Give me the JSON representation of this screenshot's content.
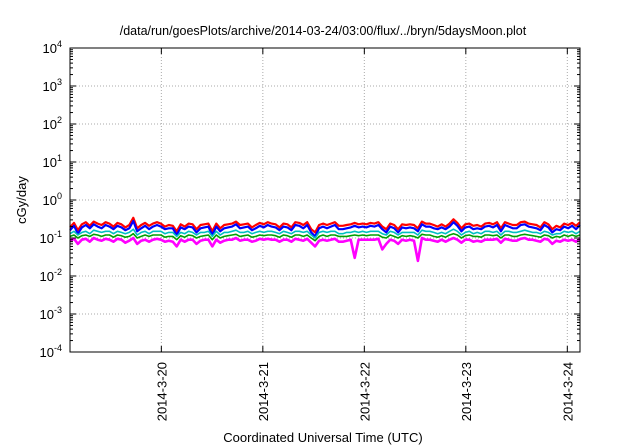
{
  "chart_data": {
    "type": "line",
    "title": "/data/run/goesPlots/archive/2014-03-24/03:00/flux/../bryn/5daysMoon.plot",
    "xlabel": "Coordinated Universal Time (UTC)",
    "ylabel": "cGy/day",
    "y_scale": "log",
    "ylim": [
      0.0001,
      10000
    ],
    "xlim": [
      "2014-03-19T02:24",
      "2014-03-24T03:00"
    ],
    "x_ticks": [
      "2014-3-20",
      "2014-3-21",
      "2014-3-22",
      "2014-3-23",
      "2014-3-24"
    ],
    "y_ticks": [
      {
        "base": "10",
        "exp": "-4"
      },
      {
        "base": "10",
        "exp": "-3"
      },
      {
        "base": "10",
        "exp": "-2"
      },
      {
        "base": "10",
        "exp": "-1"
      },
      {
        "base": "10",
        "exp": "0"
      },
      {
        "base": "10",
        "exp": "1"
      },
      {
        "base": "10",
        "exp": "2"
      },
      {
        "base": "10",
        "exp": "3"
      },
      {
        "base": "10",
        "exp": "4"
      }
    ],
    "grid": true,
    "legend": "none",
    "series": [
      {
        "color": "#ff0000",
        "values": [
          0.19,
          0.25,
          0.16,
          0.23,
          0.26,
          0.21,
          0.27,
          0.24,
          0.22,
          0.26,
          0.24,
          0.2,
          0.25,
          0.23,
          0.19,
          0.22,
          0.34,
          0.18,
          0.22,
          0.25,
          0.21,
          0.24,
          0.26,
          0.24,
          0.2,
          0.22,
          0.21,
          0.15,
          0.23,
          0.2,
          0.24,
          0.23,
          0.17,
          0.22,
          0.23,
          0.24,
          0.15,
          0.24,
          0.18,
          0.22,
          0.23,
          0.24,
          0.27,
          0.22,
          0.23,
          0.24,
          0.19,
          0.22,
          0.25,
          0.23,
          0.26,
          0.24,
          0.23,
          0.19,
          0.24,
          0.23,
          0.19,
          0.26,
          0.25,
          0.22,
          0.26,
          0.17,
          0.14,
          0.22,
          0.24,
          0.22,
          0.24,
          0.26,
          0.21,
          0.21,
          0.22,
          0.23,
          0.25,
          0.23,
          0.24,
          0.23,
          0.25,
          0.24,
          0.26,
          0.2,
          0.17,
          0.24,
          0.22,
          0.17,
          0.23,
          0.22,
          0.23,
          0.22,
          0.18,
          0.27,
          0.24,
          0.24,
          0.22,
          0.2,
          0.23,
          0.2,
          0.24,
          0.31,
          0.25,
          0.18,
          0.23,
          0.24,
          0.21,
          0.22,
          0.2,
          0.24,
          0.25,
          0.23,
          0.26,
          0.18,
          0.26,
          0.24,
          0.22,
          0.22,
          0.26,
          0.27,
          0.24,
          0.23,
          0.22,
          0.19,
          0.26,
          0.23,
          0.17,
          0.21,
          0.19,
          0.24,
          0.22,
          0.25,
          0.21,
          0.26
        ]
      },
      {
        "color": "#0000ff",
        "values": [
          0.16,
          0.21,
          0.13,
          0.19,
          0.22,
          0.18,
          0.23,
          0.2,
          0.18,
          0.22,
          0.2,
          0.17,
          0.21,
          0.19,
          0.16,
          0.18,
          0.28,
          0.15,
          0.18,
          0.21,
          0.17,
          0.2,
          0.22,
          0.2,
          0.17,
          0.18,
          0.18,
          0.12,
          0.19,
          0.17,
          0.2,
          0.19,
          0.14,
          0.18,
          0.19,
          0.2,
          0.12,
          0.2,
          0.15,
          0.18,
          0.19,
          0.2,
          0.23,
          0.18,
          0.19,
          0.2,
          0.16,
          0.18,
          0.21,
          0.19,
          0.22,
          0.2,
          0.19,
          0.16,
          0.2,
          0.19,
          0.16,
          0.22,
          0.21,
          0.18,
          0.22,
          0.14,
          0.11,
          0.18,
          0.2,
          0.18,
          0.2,
          0.22,
          0.17,
          0.17,
          0.18,
          0.19,
          0.21,
          0.19,
          0.2,
          0.19,
          0.21,
          0.2,
          0.22,
          0.17,
          0.14,
          0.2,
          0.18,
          0.14,
          0.19,
          0.18,
          0.19,
          0.18,
          0.15,
          0.23,
          0.2,
          0.2,
          0.18,
          0.17,
          0.19,
          0.17,
          0.2,
          0.26,
          0.21,
          0.15,
          0.19,
          0.2,
          0.17,
          0.18,
          0.17,
          0.2,
          0.21,
          0.19,
          0.22,
          0.15,
          0.22,
          0.2,
          0.18,
          0.18,
          0.22,
          0.23,
          0.2,
          0.19,
          0.18,
          0.16,
          0.22,
          0.19,
          0.14,
          0.17,
          0.16,
          0.2,
          0.18,
          0.21,
          0.17,
          0.22
        ]
      },
      {
        "color": "#00c0c0",
        "values": [
          0.13,
          0.15,
          0.12,
          0.14,
          0.15,
          0.13,
          0.16,
          0.15,
          0.14,
          0.15,
          0.15,
          0.13,
          0.15,
          0.14,
          0.13,
          0.14,
          0.17,
          0.12,
          0.14,
          0.15,
          0.13,
          0.15,
          0.15,
          0.15,
          0.13,
          0.14,
          0.14,
          0.11,
          0.14,
          0.13,
          0.15,
          0.14,
          0.12,
          0.14,
          0.14,
          0.15,
          0.11,
          0.15,
          0.12,
          0.14,
          0.14,
          0.15,
          0.16,
          0.14,
          0.14,
          0.15,
          0.13,
          0.14,
          0.15,
          0.14,
          0.15,
          0.15,
          0.14,
          0.13,
          0.15,
          0.14,
          0.13,
          0.15,
          0.15,
          0.14,
          0.15,
          0.12,
          0.1,
          0.14,
          0.15,
          0.14,
          0.15,
          0.15,
          0.13,
          0.13,
          0.14,
          0.14,
          0.15,
          0.14,
          0.15,
          0.14,
          0.15,
          0.15,
          0.15,
          0.13,
          0.12,
          0.15,
          0.14,
          0.12,
          0.14,
          0.14,
          0.14,
          0.14,
          0.12,
          0.16,
          0.15,
          0.15,
          0.14,
          0.13,
          0.14,
          0.13,
          0.15,
          0.17,
          0.15,
          0.12,
          0.14,
          0.15,
          0.13,
          0.14,
          0.13,
          0.15,
          0.15,
          0.14,
          0.15,
          0.12,
          0.15,
          0.15,
          0.14,
          0.14,
          0.15,
          0.16,
          0.15,
          0.14,
          0.14,
          0.13,
          0.15,
          0.14,
          0.12,
          0.13,
          0.13,
          0.15,
          0.14,
          0.15,
          0.13,
          0.15
        ]
      },
      {
        "color": "#00a000",
        "values": [
          0.11,
          0.12,
          0.1,
          0.115,
          0.12,
          0.11,
          0.125,
          0.12,
          0.11,
          0.12,
          0.12,
          0.105,
          0.12,
          0.115,
          0.105,
          0.11,
          0.13,
          0.1,
          0.11,
          0.12,
          0.11,
          0.12,
          0.12,
          0.12,
          0.105,
          0.11,
          0.11,
          0.09,
          0.115,
          0.105,
          0.12,
          0.115,
          0.1,
          0.11,
          0.115,
          0.12,
          0.09,
          0.12,
          0.1,
          0.11,
          0.115,
          0.12,
          0.125,
          0.11,
          0.115,
          0.12,
          0.105,
          0.11,
          0.12,
          0.115,
          0.12,
          0.12,
          0.115,
          0.105,
          0.12,
          0.115,
          0.105,
          0.12,
          0.12,
          0.11,
          0.12,
          0.1,
          0.085,
          0.11,
          0.12,
          0.11,
          0.12,
          0.12,
          0.11,
          0.11,
          0.11,
          0.115,
          0.12,
          0.115,
          0.12,
          0.115,
          0.12,
          0.12,
          0.12,
          0.105,
          0.1,
          0.12,
          0.11,
          0.1,
          0.115,
          0.11,
          0.115,
          0.11,
          0.1,
          0.125,
          0.12,
          0.12,
          0.11,
          0.105,
          0.115,
          0.105,
          0.12,
          0.13,
          0.12,
          0.1,
          0.115,
          0.12,
          0.11,
          0.11,
          0.105,
          0.12,
          0.12,
          0.115,
          0.12,
          0.1,
          0.12,
          0.12,
          0.11,
          0.11,
          0.12,
          0.125,
          0.12,
          0.115,
          0.11,
          0.105,
          0.12,
          0.115,
          0.1,
          0.11,
          0.105,
          0.12,
          0.11,
          0.12,
          0.11,
          0.12
        ]
      },
      {
        "color": "#ff00ff",
        "values": [
          0.085,
          0.095,
          0.07,
          0.09,
          0.095,
          0.08,
          0.1,
          0.09,
          0.085,
          0.095,
          0.09,
          0.08,
          0.095,
          0.09,
          0.075,
          0.085,
          0.1,
          0.07,
          0.085,
          0.09,
          0.08,
          0.09,
          0.095,
          0.09,
          0.08,
          0.085,
          0.08,
          0.06,
          0.09,
          0.08,
          0.09,
          0.09,
          0.07,
          0.085,
          0.09,
          0.09,
          0.06,
          0.09,
          0.075,
          0.085,
          0.09,
          0.09,
          0.1,
          0.085,
          0.09,
          0.09,
          0.08,
          0.085,
          0.095,
          0.09,
          0.095,
          0.09,
          0.09,
          0.08,
          0.09,
          0.09,
          0.08,
          0.095,
          0.09,
          0.085,
          0.095,
          0.075,
          0.06,
          0.085,
          0.09,
          0.085,
          0.09,
          0.095,
          0.08,
          0.08,
          0.085,
          0.09,
          0.03,
          0.09,
          0.09,
          0.09,
          0.09,
          0.09,
          0.095,
          0.05,
          0.07,
          0.09,
          0.085,
          0.07,
          0.09,
          0.085,
          0.09,
          0.085,
          0.025,
          0.1,
          0.09,
          0.09,
          0.085,
          0.08,
          0.09,
          0.08,
          0.09,
          0.1,
          0.09,
          0.075,
          0.09,
          0.09,
          0.08,
          0.085,
          0.08,
          0.09,
          0.09,
          0.09,
          0.095,
          0.075,
          0.095,
          0.09,
          0.085,
          0.085,
          0.095,
          0.1,
          0.09,
          0.09,
          0.085,
          0.08,
          0.095,
          0.09,
          0.07,
          0.085,
          0.08,
          0.09,
          0.085,
          0.09,
          0.08,
          0.095
        ]
      }
    ]
  }
}
